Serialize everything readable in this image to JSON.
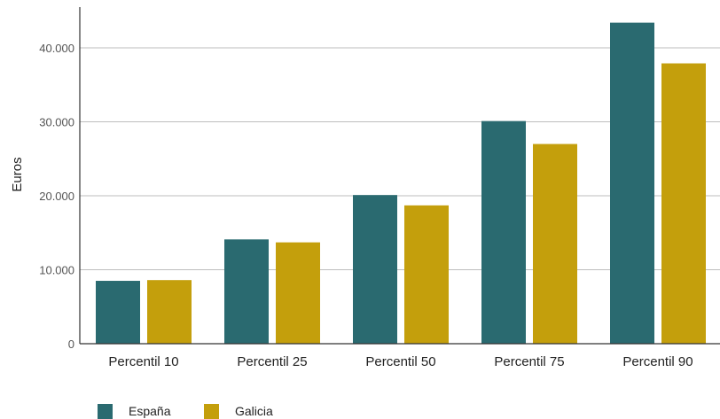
{
  "chart_data": {
    "type": "bar",
    "title": "",
    "xlabel": "",
    "ylabel": "Euros",
    "ylim": [
      0,
      45000
    ],
    "yticks": [
      0,
      10000,
      20000,
      30000,
      40000
    ],
    "ytick_labels": [
      "0",
      "10.000",
      "20.000",
      "30.000",
      "40.000"
    ],
    "grid": true,
    "legend_position": "bottom-left",
    "categories": [
      "Percentil 10",
      "Percentil 25",
      "Percentil 50",
      "Percentil 75",
      "Percentil 90"
    ],
    "series": [
      {
        "name": "España",
        "color": "#2a6a70",
        "values": [
          8500,
          14100,
          20100,
          30100,
          43400
        ]
      },
      {
        "name": "Galicia",
        "color": "#c49f0c",
        "values": [
          8600,
          13700,
          18700,
          27000,
          37900
        ]
      }
    ]
  }
}
